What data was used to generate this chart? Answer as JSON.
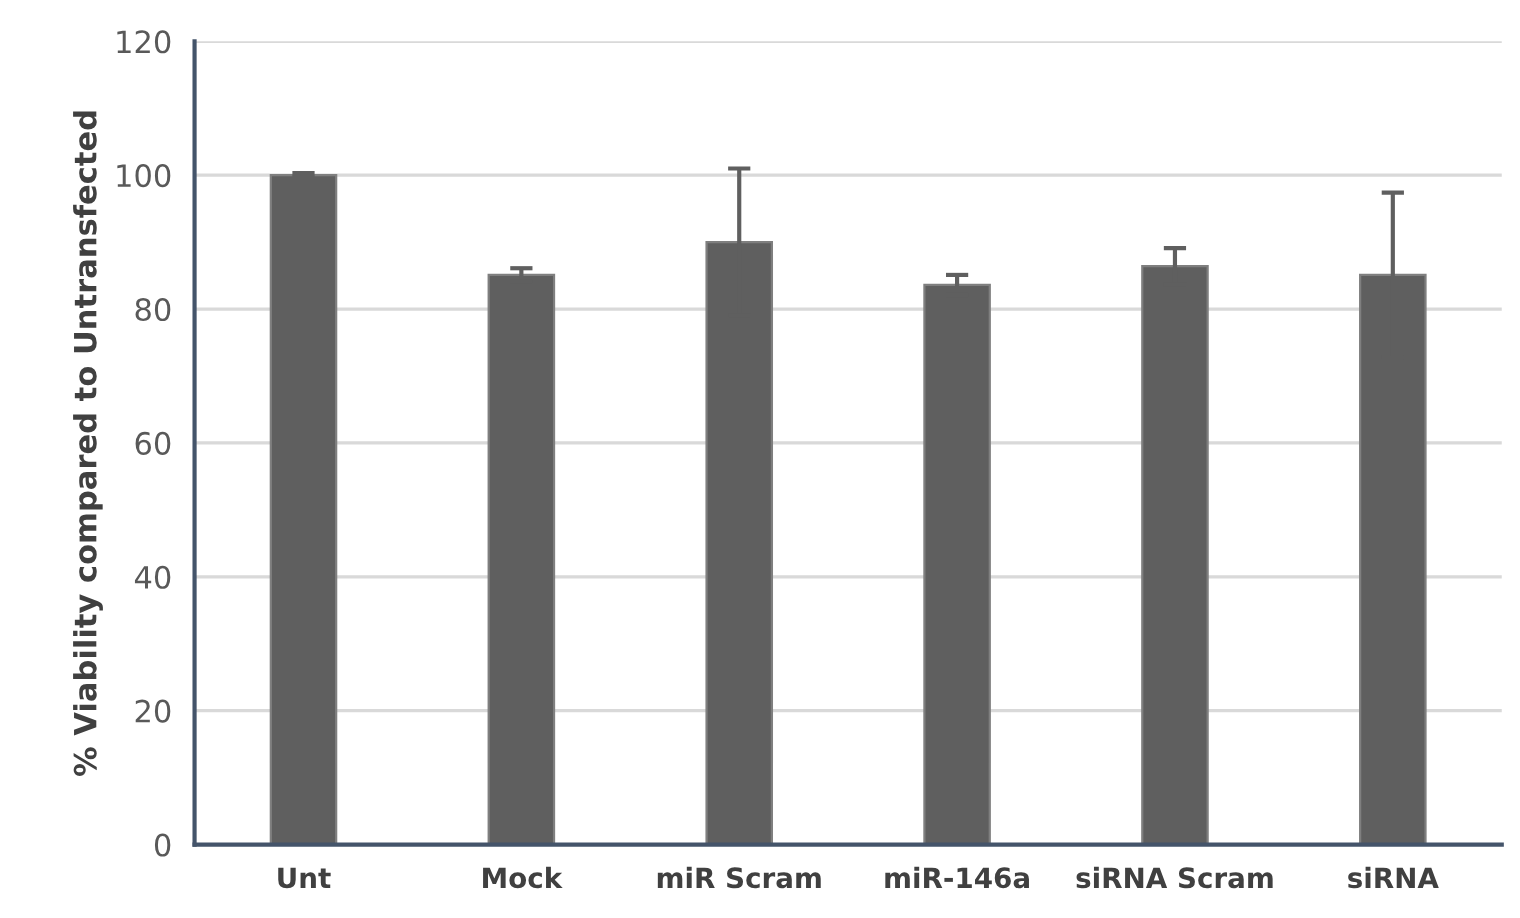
{
  "chart_data": {
    "type": "bar",
    "ylabel": "% Viability compared to Untransfected",
    "categories": [
      "Unt",
      "Mock",
      "miR Scram",
      "miR-146a",
      "siRNA Scram",
      "siRNA"
    ],
    "values": [
      100,
      85.1,
      90,
      83.6,
      86.4,
      85.1
    ],
    "errors": [
      0.3,
      1.0,
      11,
      1.5,
      2.7,
      12.3
    ],
    "color": "#5f5f5f",
    "ylim": [
      0,
      120
    ],
    "yticks": [
      0,
      20,
      40,
      60,
      80,
      100,
      120
    ],
    "grid": "y"
  }
}
